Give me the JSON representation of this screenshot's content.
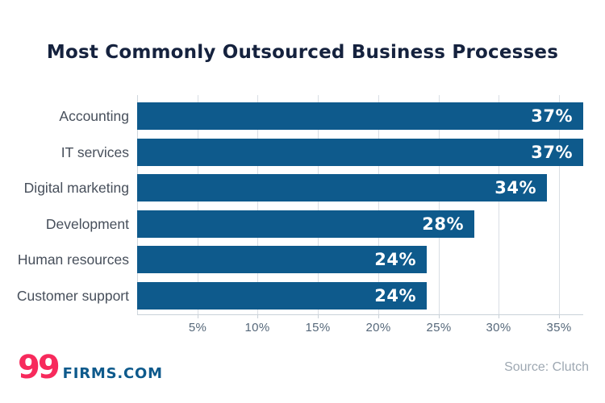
{
  "title": "Most Commonly Outsourced Business Processes",
  "chart_data": {
    "type": "bar",
    "orientation": "horizontal",
    "title": "Most Commonly Outsourced Business Processes",
    "categories": [
      "Accounting",
      "IT services",
      "Digital marketing",
      "Development",
      "Human resources",
      "Customer support"
    ],
    "values": [
      37,
      37,
      34,
      28,
      24,
      24
    ],
    "value_labels": [
      "37%",
      "37%",
      "34%",
      "28%",
      "24%",
      "24%"
    ],
    "x_tick_values": [
      5,
      10,
      15,
      20,
      25,
      30,
      35
    ],
    "x_tick_labels": [
      "5%",
      "10%",
      "15%",
      "20%",
      "25%",
      "30%",
      "35%"
    ],
    "xlim": [
      0,
      37
    ],
    "grid": "vertical-on",
    "legend": "none",
    "bar_color": "#0E5A8C",
    "value_label_color": "#FFFFFF"
  },
  "footer": {
    "logo_number": "99",
    "logo_domain": "FIRMS.COM",
    "source": "Source: Clutch"
  },
  "colors": {
    "title": "#15223E",
    "category_label": "#474F5B",
    "tick_label": "#56687A",
    "gridline": "#D9DEE4",
    "logo_pink": "#F72A5C",
    "logo_blue": "#0E5A8C",
    "source_gray": "#9EA8B2",
    "background": "#FFFFFF"
  }
}
